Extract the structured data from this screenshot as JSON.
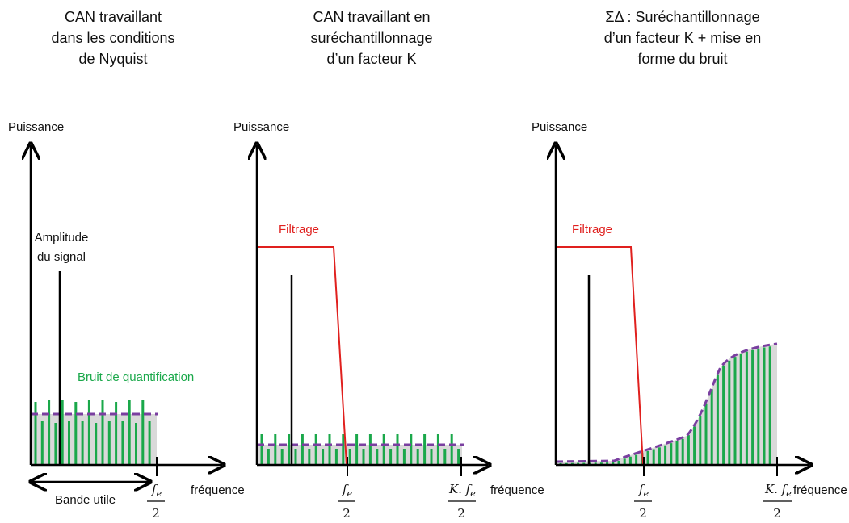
{
  "panels": [
    {
      "title": [
        "CAN travaillant",
        "dans les conditions",
        "de Nyquist"
      ],
      "y_axis_label": "Puissance",
      "x_axis_label": "fréquence",
      "signal_label": [
        "Amplitude",
        "du signal"
      ],
      "noise_label": "Bruit de quantification",
      "band_label": "Bande utile",
      "tick_fe": {
        "num": "f",
        "sub": "e",
        "den": "2"
      }
    },
    {
      "title": [
        "CAN travaillant en",
        "suréchantillonnage",
        "d’un facteur K"
      ],
      "y_axis_label": "Puissance",
      "x_axis_label": "fréquence",
      "filter_label": "Filtrage",
      "tick_fe": {
        "num": "f",
        "sub": "e",
        "den": "2"
      },
      "tick_kfe": {
        "num": "K. f",
        "sub": "e",
        "den": "2"
      }
    },
    {
      "title": [
        "ΣΔ : Suréchantillonnage",
        "d’un facteur K + mise en",
        "forme du bruit"
      ],
      "y_axis_label": "Puissance",
      "x_axis_label": "fréquence",
      "filter_label": "Filtrage",
      "tick_fe": {
        "num": "f",
        "sub": "e",
        "den": "2"
      },
      "tick_kfe": {
        "num": "K. f",
        "sub": "e",
        "den": "2"
      }
    }
  ],
  "colors": {
    "axis": "#000000",
    "filter": "#e0201e",
    "noise_bars": "#1aa84a",
    "noise_envelope": "#7a3fa0",
    "fill": "#d9d9d9"
  }
}
